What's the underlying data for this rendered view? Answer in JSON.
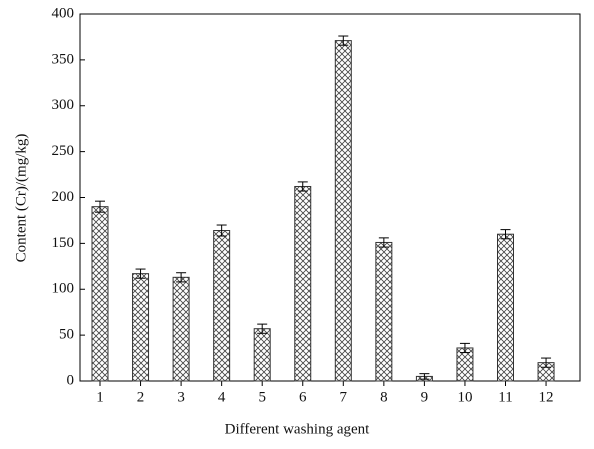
{
  "chart_data": {
    "type": "bar",
    "x_label": "Different washing agent",
    "y_label": "Content (Cr)/(mg/kg)",
    "categories": [
      "1",
      "2",
      "3",
      "4",
      "5",
      "6",
      "7",
      "8",
      "9",
      "10",
      "11",
      "12"
    ],
    "values": [
      190,
      117,
      113,
      164,
      57,
      212,
      371,
      151,
      5,
      36,
      160,
      20
    ],
    "errors": [
      6,
      5,
      5,
      6,
      5,
      5,
      5,
      5,
      3,
      5,
      5,
      5
    ],
    "color": "#333333",
    "ylim": [
      0,
      400
    ],
    "yticks": [
      0,
      50,
      100,
      150,
      200,
      250,
      300,
      350,
      400
    ],
    "grid": false
  }
}
